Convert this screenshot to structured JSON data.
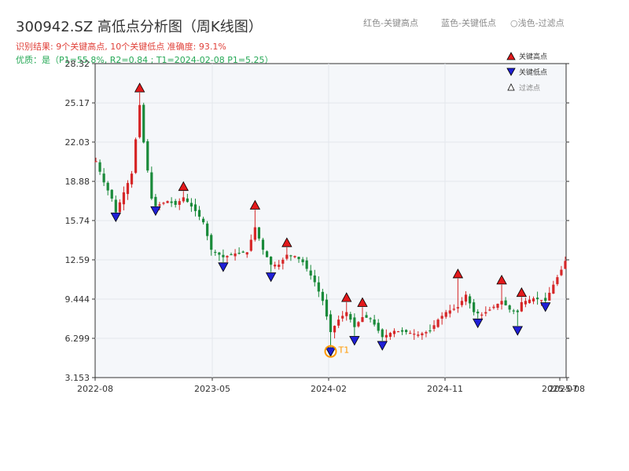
{
  "title": "300942.SZ 高低点分析图（周K线图）",
  "summary_line": "识别结果: 9个关键高点, 10个关键低点  准确度: 93.1%",
  "quality_line": "优质：是（P1=55.8%, R2=0.84 ; T1=2024-02-08 P1=5.25）",
  "top_legend": {
    "red": "红色-关键高点",
    "blue": "蓝色-关键低点",
    "light": "○浅色-过滤点"
  },
  "legend": {
    "high": "关键高点",
    "low": "关键低点",
    "filtered": "过滤点"
  },
  "colors": {
    "up": "#d62728",
    "down": "#1a8a3a",
    "high_marker": "#e31a1c",
    "low_marker": "#1f1fd6",
    "t1_marker": "#ff9900",
    "quality": "#27a957",
    "summary": "#e0413a"
  },
  "chart_data": {
    "type": "candlestick",
    "y_ticks": [
      "3.153",
      "6.299",
      "9.444",
      "12.59",
      "15.74",
      "18.88",
      "22.03",
      "25.17",
      "28.32"
    ],
    "x_ticks": [
      "2022-08",
      "2023-05",
      "2024-02",
      "2024-11",
      "2025-07",
      "2025-08"
    ],
    "ylim": [
      3.153,
      28.32
    ],
    "grid": true,
    "t1_label": "T1",
    "highs": [
      {
        "i": 11,
        "v": 26.3
      },
      {
        "i": 22,
        "v": 18.4
      },
      {
        "i": 40,
        "v": 16.9
      },
      {
        "i": 48,
        "v": 13.9
      },
      {
        "i": 63,
        "v": 9.5
      },
      {
        "i": 67,
        "v": 9.1
      },
      {
        "i": 91,
        "v": 11.4
      },
      {
        "i": 102,
        "v": 10.9
      },
      {
        "i": 107,
        "v": 9.9
      }
    ],
    "lows": [
      {
        "i": 5,
        "v": 16.1
      },
      {
        "i": 15,
        "v": 16.6
      },
      {
        "i": 32,
        "v": 12.1
      },
      {
        "i": 44,
        "v": 11.3
      },
      {
        "i": 59,
        "v": 5.3
      },
      {
        "i": 65,
        "v": 6.2
      },
      {
        "i": 72,
        "v": 5.8
      },
      {
        "i": 96,
        "v": 7.6
      },
      {
        "i": 106,
        "v": 7.0
      },
      {
        "i": 113,
        "v": 8.9
      }
    ],
    "t1_index": 59,
    "t1_value": 5.25
  }
}
